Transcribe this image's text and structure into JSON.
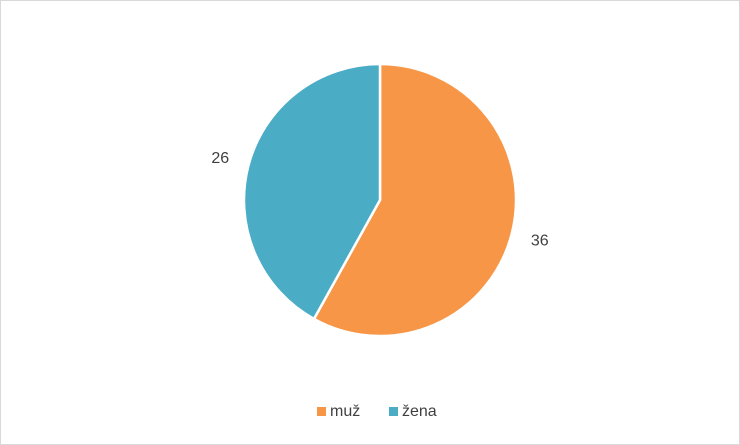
{
  "chart_data": {
    "type": "pie",
    "categories": [
      "muž",
      "žena"
    ],
    "values": [
      36,
      26
    ],
    "colors": [
      "#f79646",
      "#4bacc6"
    ],
    "legend": "bottom"
  }
}
